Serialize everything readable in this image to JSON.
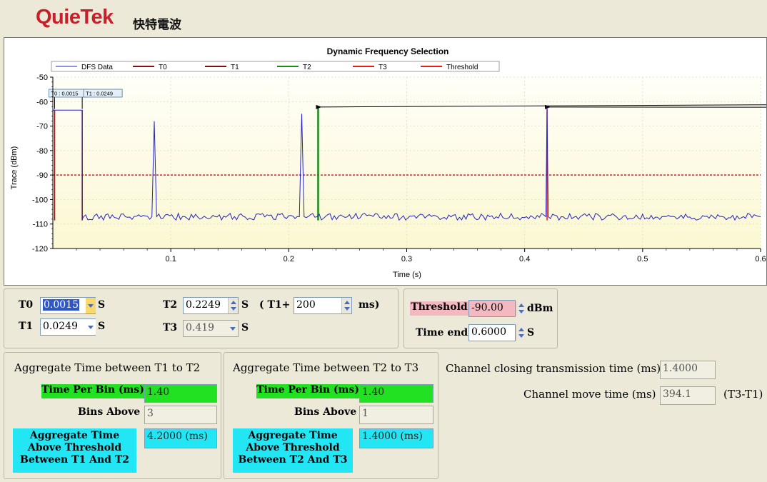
{
  "header": {
    "logo": "QuieTek",
    "logo_cn": "快特電波"
  },
  "colors": {
    "dfs": "#2323c9",
    "t0": "#8b1010",
    "t1": "#7a1010",
    "t2": "#1a8a1a",
    "t3": "#e81a1a",
    "threshold": "#e81a1a",
    "plot_bg_top": "#fffef8",
    "plot_bg_bottom": "#fbf8d2"
  },
  "chart_data": {
    "type": "line",
    "title": "Dynamic Frequency Selection",
    "xlabel": "Time (s)",
    "ylabel": "Trace (dBm)",
    "xlim": [
      0,
      0.6
    ],
    "ylim": [
      -120,
      -50
    ],
    "xticks": [
      "0.1",
      "0.2",
      "0.3",
      "0.4",
      "0.5",
      "0.6"
    ],
    "yticks": [
      "-50",
      "-60",
      "-70",
      "-80",
      "-90",
      "-100",
      "-110",
      "-120"
    ],
    "legend": [
      "DFS Data",
      "T0",
      "T1",
      "T2",
      "T3",
      "Threshold"
    ],
    "legend_position": "top",
    "series": [
      {
        "name": "DFS Data",
        "x": [
          0,
          0.0015,
          0.0249,
          0.025,
          0.026,
          0.084,
          0.086,
          0.088,
          0.209,
          0.211,
          0.213,
          0.418,
          0.419,
          0.42,
          0.6
        ],
        "y": [
          -63.5,
          -63.5,
          -63.5,
          -108,
          -107,
          -107,
          -68,
          -107,
          -107,
          -65,
          -107,
          -107,
          -62,
          -107,
          -107
        ]
      }
    ],
    "markers": [
      {
        "name": "T0",
        "x": 0.0015,
        "label": "T0 : 0.0015"
      },
      {
        "name": "T1",
        "x": 0.0249,
        "label": "T1 : 0.0249"
      },
      {
        "name": "T2",
        "x": 0.2249
      },
      {
        "name": "T3",
        "x": 0.419
      }
    ],
    "threshold": -90,
    "grid": true
  },
  "controls": {
    "t0_label": "T0",
    "t0_value": "0.0015",
    "t0_unit": "S",
    "t1_label": "T1",
    "t1_value": "0.0249",
    "t1_unit": "S",
    "t2_label": "T2",
    "t2_value": "0.2249",
    "t2_unit": "S",
    "t3_label": "T3",
    "t3_value": "0.419",
    "t3_unit": "S",
    "t1plus_label": "( T1+",
    "t1plus_value": "200",
    "t1plus_unit": "ms)",
    "threshold_label": "Threshold",
    "threshold_value": "-90.00",
    "threshold_unit": "dBm",
    "time_end_label": "Time end",
    "time_end_value": "0.6000",
    "time_end_unit": "S"
  },
  "agg12": {
    "title": "Aggregate Time between T1 to T2",
    "time_per_bin_label": "Time Per Bin (ms)",
    "time_per_bin_value": "1.40",
    "bins_above_label": "Bins Above",
    "bins_above_value": "3",
    "agg_label": "Aggregate Time Above Threshold Between T1 And T2",
    "agg_value": "4.2000 (ms)"
  },
  "agg23": {
    "title": "Aggregate Time between T2 to T3",
    "time_per_bin_label": "Time Per Bin (ms)",
    "time_per_bin_value": "1.40",
    "bins_above_label": "Bins Above",
    "bins_above_value": "1",
    "agg_label": "Aggregate Time Above Threshold Between T2 And T3",
    "agg_value": "1.4000 (ms)"
  },
  "channel": {
    "closing_label": "Channel closing transmission time (ms)",
    "closing_value": "1.4000",
    "move_label": "Channel move time (ms)",
    "move_value": "394.1",
    "move_note": "(T3-T1)"
  }
}
